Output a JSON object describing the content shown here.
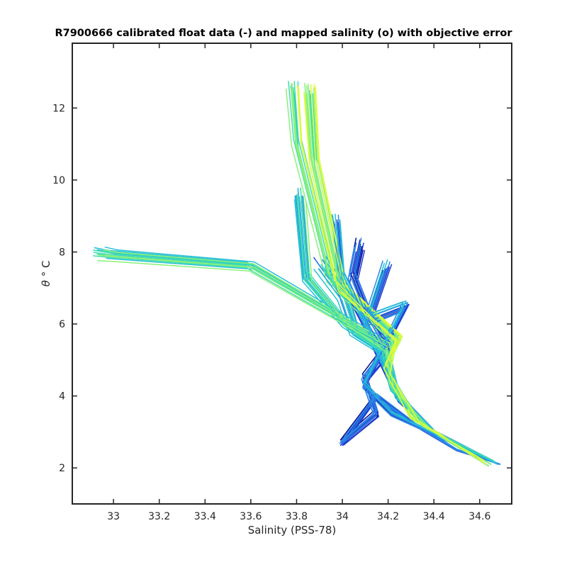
{
  "chart_data": {
    "type": "line",
    "title": "R7900666 calibrated float data (-) and mapped salinity (o) with objective error",
    "xlabel": "Salinity (PSS-78)",
    "ylabel_symbol": "θ",
    "ylabel_unit": "° C",
    "xlim": [
      32.82,
      34.74
    ],
    "ylim": [
      1.0,
      13.8
    ],
    "xticks": [
      33,
      33.2,
      33.4,
      33.6,
      33.8,
      34,
      34.2,
      34.4,
      34.6
    ],
    "xtick_labels": [
      "33",
      "33.2",
      "33.4",
      "33.6",
      "33.8",
      "34",
      "34.2",
      "34.4",
      "34.6"
    ],
    "yticks": [
      2,
      4,
      6,
      8,
      10,
      12
    ],
    "ytick_labels": [
      "2",
      "4",
      "6",
      "8",
      "10",
      "12"
    ],
    "grid": false,
    "colormap": [
      "#0d0887",
      "#1f3fd0",
      "#2b86e8",
      "#25c0d6",
      "#3fdcae",
      "#8bf07a",
      "#d9fb3c",
      "#f9fb0e"
    ],
    "series_template": {
      "description_free": true,
      "deep_branch": [
        [
          34.68,
          2.1
        ],
        [
          34.6,
          2.4
        ],
        [
          34.45,
          3.0
        ],
        [
          34.3,
          3.6
        ],
        [
          34.22,
          4.4
        ],
        [
          34.19,
          5.3
        ],
        [
          34.18,
          5.6
        ]
      ],
      "upper_branch": [
        [
          34.18,
          5.6
        ],
        [
          34.1,
          6.5
        ],
        [
          34.02,
          7.5
        ],
        [
          33.95,
          8.6
        ],
        [
          33.9,
          9.8
        ],
        [
          33.86,
          11.0
        ],
        [
          33.85,
          12.0
        ]
      ]
    },
    "profiles": [
      {
        "idx": 0,
        "deep": [
          [
            34.69,
            2.1
          ],
          [
            34.5,
            2.5
          ],
          [
            34.32,
            3.2
          ],
          [
            34.15,
            4.0
          ],
          [
            34.0,
            2.7
          ],
          [
            34.15,
            3.5
          ],
          [
            34.1,
            4.5
          ],
          [
            34.2,
            5.3
          ],
          [
            34.12,
            6.2
          ],
          [
            34.05,
            7.3
          ],
          [
            34.08,
            8.2
          ]
        ]
      },
      {
        "idx": 1,
        "deep": [
          [
            34.68,
            2.1
          ],
          [
            34.45,
            2.8
          ],
          [
            34.22,
            3.5
          ],
          [
            34.1,
            4.3
          ],
          [
            34.2,
            5.5
          ],
          [
            34.28,
            6.5
          ],
          [
            34.12,
            6.1
          ],
          [
            34.2,
            7.6
          ]
        ]
      },
      {
        "idx": 2,
        "deep": [
          [
            34.67,
            2.15
          ],
          [
            34.42,
            2.9
          ],
          [
            34.25,
            3.9
          ],
          [
            34.18,
            4.9
          ],
          [
            34.1,
            6.1
          ],
          [
            34.0,
            7.4
          ],
          [
            33.98,
            8.9
          ]
        ]
      },
      {
        "idx": 3,
        "deep": [
          [
            34.66,
            2.2
          ],
          [
            34.4,
            3.0
          ],
          [
            34.24,
            4.0
          ],
          [
            34.19,
            5.2
          ],
          [
            34.05,
            5.8
          ],
          [
            34.0,
            6.8
          ],
          [
            33.9,
            7.7
          ]
        ]
      },
      {
        "idx": 4,
        "deep": [
          [
            34.65,
            2.1
          ],
          [
            34.38,
            3.1
          ],
          [
            34.22,
            4.2
          ],
          [
            34.18,
            5.3
          ],
          [
            34.02,
            6.0
          ],
          [
            33.85,
            7.3
          ],
          [
            33.82,
            9.6
          ]
        ]
      },
      {
        "idx": 5,
        "deep": [
          [
            34.64,
            2.05
          ],
          [
            34.35,
            3.2
          ],
          [
            34.21,
            4.4
          ],
          [
            34.2,
            5.4
          ],
          [
            33.6,
            7.6
          ],
          [
            33.0,
            7.9
          ],
          [
            32.94,
            7.95
          ]
        ]
      },
      {
        "idx": 6,
        "deep": [
          [
            34.63,
            2.1
          ],
          [
            34.33,
            3.3
          ],
          [
            34.2,
            4.6
          ],
          [
            34.22,
            5.5
          ],
          [
            33.95,
            7.2
          ],
          [
            33.8,
            11.0
          ],
          [
            33.78,
            12.6
          ]
        ]
      },
      {
        "idx": 7,
        "deep": [
          [
            34.62,
            2.2
          ],
          [
            34.3,
            3.4
          ],
          [
            34.19,
            4.8
          ],
          [
            34.25,
            5.6
          ],
          [
            34.0,
            7.0
          ],
          [
            33.88,
            10.5
          ],
          [
            33.86,
            12.5
          ]
        ]
      }
    ]
  }
}
